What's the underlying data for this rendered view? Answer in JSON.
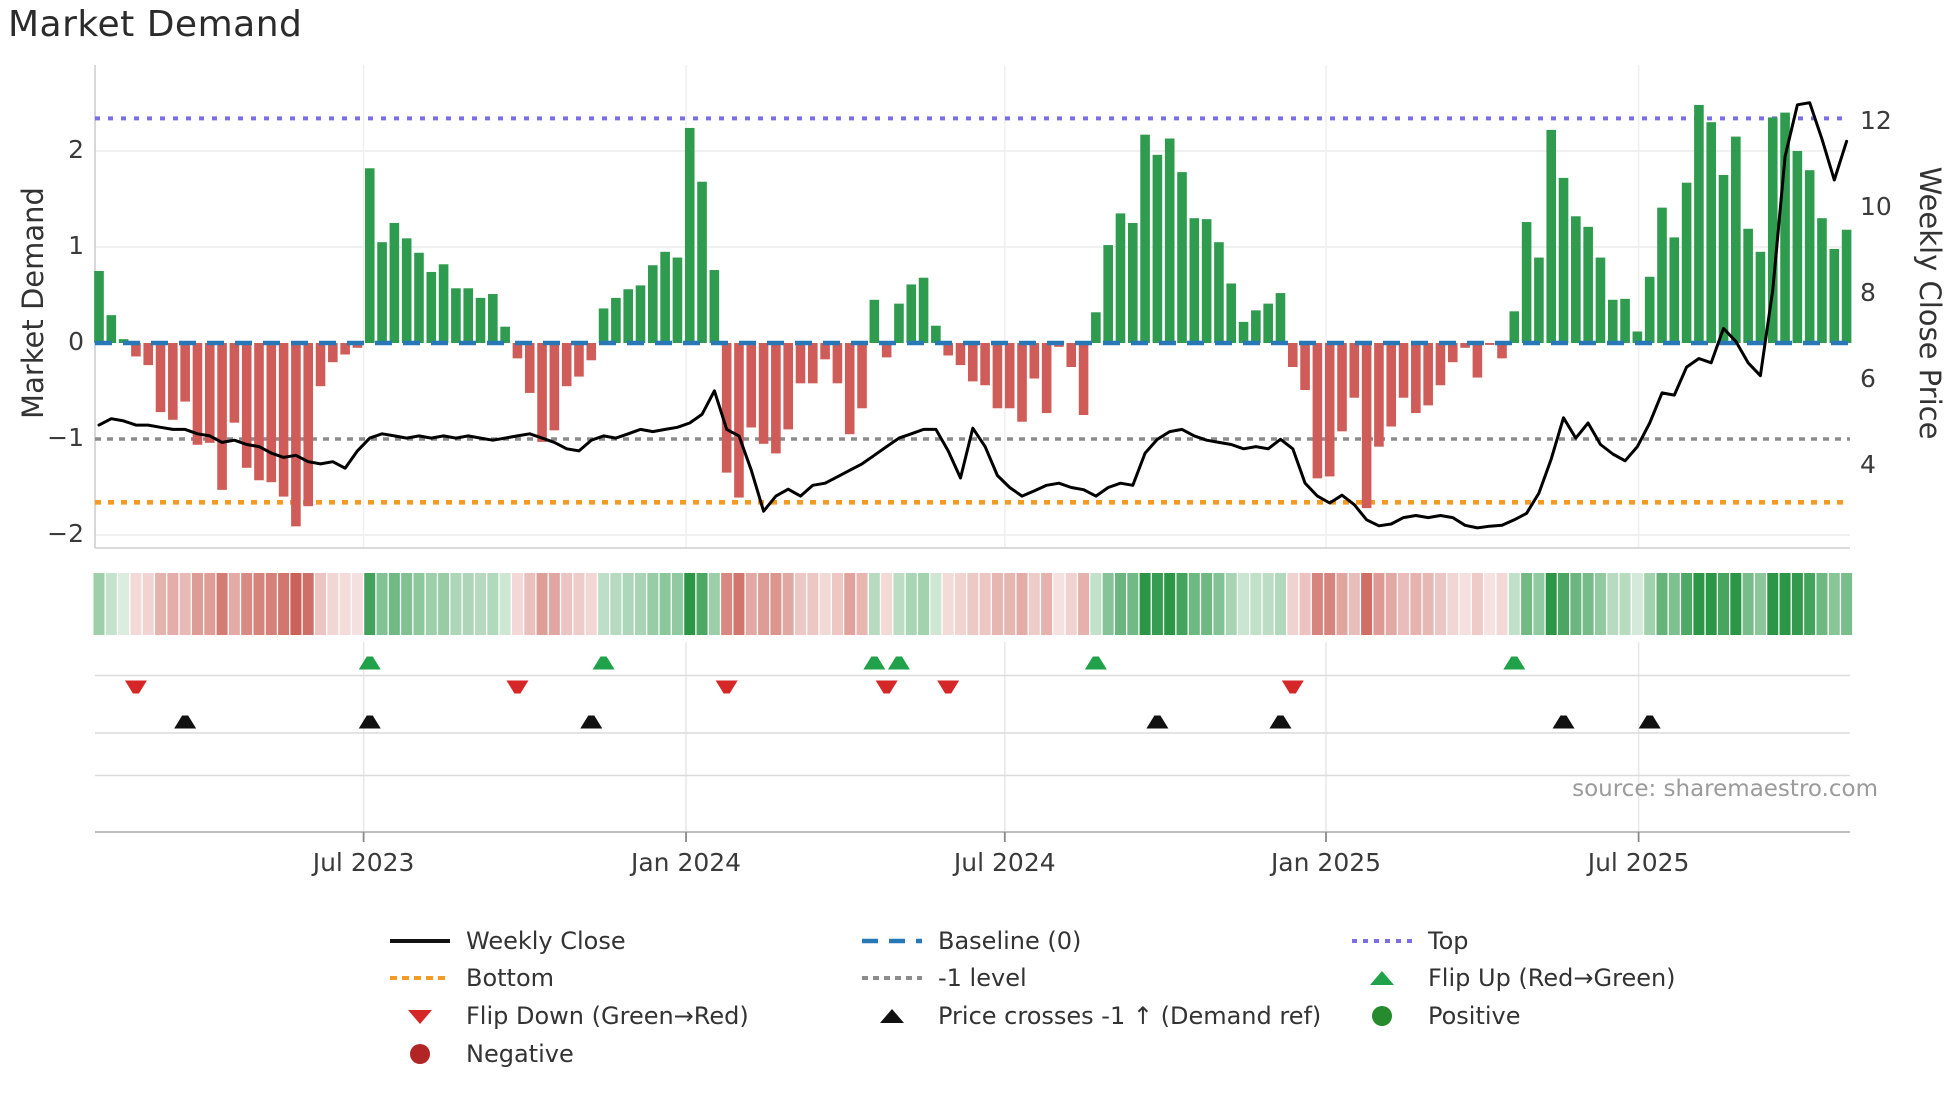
{
  "title": "Market Demand",
  "source": "source: sharemaestro.com",
  "axes": {
    "left": {
      "title": "Market Demand",
      "ticks": [
        {
          "label": "2",
          "value": 2
        },
        {
          "label": "1",
          "value": 1
        },
        {
          "label": "0",
          "value": 0
        },
        {
          "label": "−1",
          "value": -1
        },
        {
          "label": "−2",
          "value": -2
        }
      ]
    },
    "right": {
      "title": "Weekly Close Price",
      "ticks": [
        {
          "label": "12",
          "value": 12
        },
        {
          "label": "10",
          "value": 10
        },
        {
          "label": "8",
          "value": 8
        },
        {
          "label": "6",
          "value": 6
        },
        {
          "label": "4",
          "value": 4
        }
      ]
    },
    "x": {
      "ticks": [
        {
          "label": "Jul 2023",
          "week": 21.5
        },
        {
          "label": "Jan 2024",
          "week": 47.7
        },
        {
          "label": "Jul 2024",
          "week": 73.6
        },
        {
          "label": "Jan 2025",
          "week": 99.7
        },
        {
          "label": "Jul 2025",
          "week": 125.1
        }
      ]
    }
  },
  "chart_data": {
    "type": "bar",
    "subtype": "combo-bar-line-heatmap",
    "title": "Market Demand",
    "xlabel": "",
    "ylabel_left": "Market Demand",
    "ylabel_right": "Weekly Close Price",
    "ylim_left": [
      -2.15,
      2.9
    ],
    "ylim_right": [
      2.0,
      13.5
    ],
    "grid": "horizontal-light",
    "legend_position": "bottom",
    "series": [
      {
        "name": "Market Demand",
        "type": "bar",
        "axis": "left",
        "positive_color": "#2e9b4e",
        "negative_color": "#cf5c58",
        "values": [
          0.75,
          0.29,
          0.04,
          -0.14,
          -0.23,
          -0.72,
          -0.8,
          -0.61,
          -1.06,
          -1.04,
          -1.53,
          -0.83,
          -1.3,
          -1.43,
          -1.45,
          -1.6,
          -1.91,
          -1.7,
          -0.45,
          -0.2,
          -0.12,
          -0.05,
          1.82,
          1.05,
          1.25,
          1.09,
          0.94,
          0.74,
          0.82,
          0.57,
          0.57,
          0.47,
          0.51,
          0.17,
          -0.16,
          -0.52,
          -1.03,
          -0.91,
          -0.45,
          -0.35,
          -0.18,
          0.36,
          0.47,
          0.56,
          0.6,
          0.81,
          0.95,
          0.89,
          2.24,
          1.68,
          0.76,
          -1.35,
          -1.61,
          -0.88,
          -1.05,
          -1.15,
          -0.9,
          -0.42,
          -0.42,
          -0.17,
          -0.42,
          -0.95,
          -0.68,
          0.45,
          -0.15,
          0.41,
          0.61,
          0.68,
          0.18,
          -0.13,
          -0.23,
          -0.4,
          -0.44,
          -0.68,
          -0.68,
          -0.82,
          -0.37,
          -0.73,
          -0.04,
          -0.25,
          -0.75,
          0.32,
          1.02,
          1.35,
          1.25,
          2.17,
          1.96,
          2.13,
          1.78,
          1.3,
          1.29,
          1.05,
          0.62,
          0.22,
          0.34,
          0.41,
          0.52,
          -0.25,
          -0.49,
          -1.41,
          -1.39,
          -0.92,
          -0.57,
          -1.72,
          -1.08,
          -0.87,
          -0.57,
          -0.73,
          -0.65,
          -0.44,
          -0.2,
          -0.05,
          -0.36,
          -0.02,
          -0.16,
          0.33,
          1.26,
          0.89,
          2.22,
          1.72,
          1.32,
          1.21,
          0.89,
          0.45,
          0.46,
          0.12,
          0.69,
          1.41,
          1.1,
          1.67,
          2.48,
          2.3,
          1.75,
          2.15,
          1.19,
          0.95,
          2.35,
          2.4,
          2.0,
          1.8,
          1.3,
          0.98,
          1.18
        ]
      },
      {
        "name": "Weekly Close",
        "type": "line",
        "axis": "right",
        "color": "#000000",
        "values": [
          4.95,
          5.1,
          5.05,
          4.95,
          4.95,
          4.9,
          4.85,
          4.85,
          4.75,
          4.7,
          4.55,
          4.6,
          4.5,
          4.45,
          4.3,
          4.2,
          4.25,
          4.1,
          4.05,
          4.1,
          3.95,
          4.35,
          4.65,
          4.75,
          4.7,
          4.65,
          4.7,
          4.65,
          4.7,
          4.65,
          4.7,
          4.65,
          4.6,
          4.65,
          4.7,
          4.75,
          4.65,
          4.55,
          4.4,
          4.35,
          4.6,
          4.7,
          4.65,
          4.75,
          4.85,
          4.8,
          4.85,
          4.9,
          5.0,
          5.2,
          5.75,
          4.85,
          4.7,
          3.9,
          2.95,
          3.3,
          3.46,
          3.3,
          3.55,
          3.6,
          3.75,
          3.9,
          4.05,
          4.25,
          4.45,
          4.65,
          4.75,
          4.85,
          4.85,
          4.35,
          3.72,
          4.88,
          4.45,
          3.78,
          3.5,
          3.3,
          3.42,
          3.55,
          3.6,
          3.5,
          3.45,
          3.3,
          3.5,
          3.6,
          3.55,
          4.3,
          4.62,
          4.8,
          4.85,
          4.7,
          4.6,
          4.55,
          4.5,
          4.4,
          4.45,
          4.4,
          4.62,
          4.4,
          3.6,
          3.3,
          3.14,
          3.32,
          3.1,
          2.75,
          2.61,
          2.65,
          2.8,
          2.85,
          2.8,
          2.85,
          2.8,
          2.62,
          2.56,
          2.6,
          2.62,
          2.75,
          2.9,
          3.37,
          4.16,
          5.12,
          4.65,
          5.0,
          4.5,
          4.28,
          4.12,
          4.45,
          5.0,
          5.7,
          5.65,
          6.3,
          6.5,
          6.4,
          7.2,
          6.9,
          6.4,
          6.1,
          8.1,
          11.2,
          12.4,
          12.45,
          11.6,
          10.65,
          11.55
        ]
      }
    ],
    "ref_lines": [
      {
        "name": "Top",
        "value": 2.34,
        "axis": "left",
        "color": "#7a6ee6",
        "style": "dotted"
      },
      {
        "name": "Baseline (0)",
        "value": 0,
        "axis": "left",
        "color": "#2878b8",
        "style": "dashed"
      },
      {
        "name": "-1 level",
        "value": -1,
        "axis": "left",
        "color": "#8c8c8c",
        "style": "dotted"
      },
      {
        "name": "Bottom",
        "value": -1.66,
        "axis": "left",
        "color": "#f49b26",
        "style": "dotted"
      }
    ],
    "markers": {
      "flip_up": {
        "label": "Flip Up (Red→Green)",
        "color": "#1fa24a",
        "indices": [
          22,
          41,
          63,
          65,
          81,
          115
        ]
      },
      "flip_down": {
        "label": "Flip Down (Green→Red)",
        "color": "#d62728",
        "indices": [
          3,
          34,
          51,
          64,
          69,
          97
        ]
      },
      "price_cross": {
        "label": "Price crosses -1 ↑ (Demand ref)",
        "color": "#111111",
        "indices": [
          7,
          22,
          40,
          86,
          96,
          119,
          126
        ]
      }
    },
    "heatmap": {
      "derived_from": "Market Demand bar sign and magnitude",
      "positive_color": "#2a9646",
      "negative_color": "#c6554b"
    }
  },
  "legend": {
    "columns": [
      {
        "items": [
          {
            "icon": "weekly-close-line",
            "label": "Weekly Close"
          },
          {
            "icon": "bottom-dash",
            "label": "Bottom"
          },
          {
            "icon": "flip-down-triangle",
            "label": "Flip Down (Green→Red)"
          },
          {
            "icon": "negative-circle",
            "label": "Negative"
          }
        ]
      },
      {
        "items": [
          {
            "icon": "baseline-dash",
            "label": "Baseline (0)"
          },
          {
            "icon": "minus1-dash",
            "label": "-1 level"
          },
          {
            "icon": "price-cross-triangle",
            "label": "Price crosses -1 ↑ (Demand ref)"
          }
        ]
      },
      {
        "items": [
          {
            "icon": "top-dash",
            "label": "Top"
          },
          {
            "icon": "flip-up-triangle",
            "label": "Flip Up (Red→Green)"
          },
          {
            "icon": "positive-circle",
            "label": "Positive"
          }
        ]
      }
    ]
  }
}
